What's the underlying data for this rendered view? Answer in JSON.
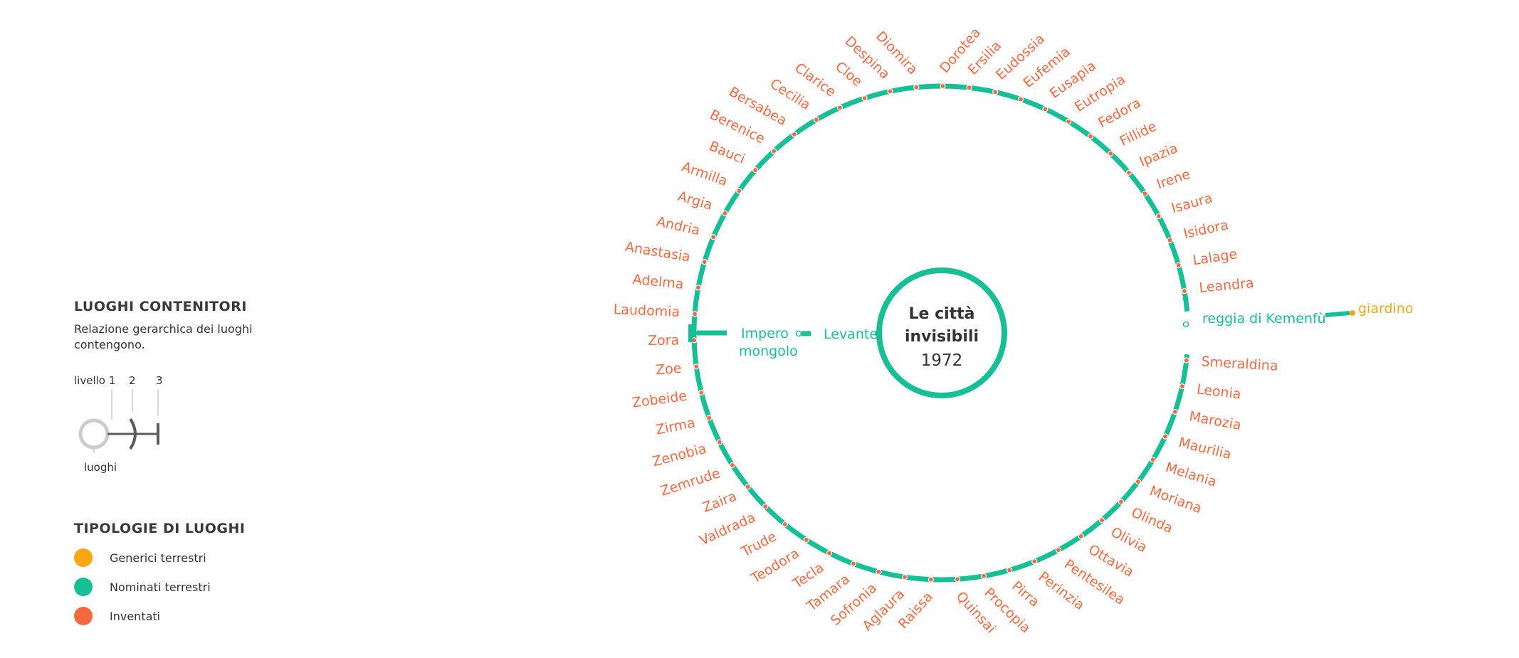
{
  "legend": {
    "containers_title": "LUOGHI CONTENITORI",
    "containers_desc": "Relazione gerarchica dei luoghi contengono.",
    "level_label_1": "livello 1",
    "level_label_2": "2",
    "level_label_3": "3",
    "places_label": "luoghi",
    "types_title": "TIPOLOGIE DI LUOGHI",
    "types": [
      {
        "label": "Generici terrestri",
        "color": "#FBA614"
      },
      {
        "label": "Nominati terrestri",
        "color": "#17BF97"
      },
      {
        "label": "Inventati",
        "color": "#F8683F"
      }
    ]
  },
  "colors": {
    "invented": "#F8683F",
    "named": "#17BF97",
    "generic": "#FBA614",
    "legend_gray": "#5a5a5a",
    "legend_light": "#cccccc"
  },
  "center": {
    "title_line1": "Le città",
    "title_line2": "invisibili",
    "year": "1972"
  },
  "chain_left": {
    "level2": "Levante",
    "level3_line1": "Impero",
    "level3_line2": "mongolo"
  },
  "chain_right": {
    "named": "reggia di Kemenfù",
    "generic": "giardino"
  },
  "cities_ring": [
    "Dorotea",
    "Ersilia",
    "Eudossia",
    "Eufemia",
    "Eusapia",
    "Eutropia",
    "Fedora",
    "Fillide",
    "Ipazia",
    "Irene",
    "Isaura",
    "Isidora",
    "Lalage",
    "Leandra",
    "Smeraldina",
    "Leonia",
    "Marozia",
    "Maurilia",
    "Melania",
    "Moriana",
    "Olinda",
    "Olivia",
    "Ottavia",
    "Pentesilea",
    "Perinzia",
    "Pirra",
    "Procopia",
    "Quinsai",
    "Raissa",
    "Aglaura",
    "Sofronia",
    "Tamara",
    "Tecla",
    "Teodora",
    "Trude",
    "Valdrada",
    "Zaira",
    "Zemrude",
    "Zenobia",
    "Zirma",
    "Zobeide",
    "Zoe",
    "Zora",
    "Laudomia",
    "Adelma",
    "Anastasia",
    "Andria",
    "Argia",
    "Armilla",
    "Bauci",
    "Berenice",
    "Bersabea",
    "Cecilia",
    "Clarice",
    "Cloe",
    "Despina",
    "Diomira"
  ]
}
